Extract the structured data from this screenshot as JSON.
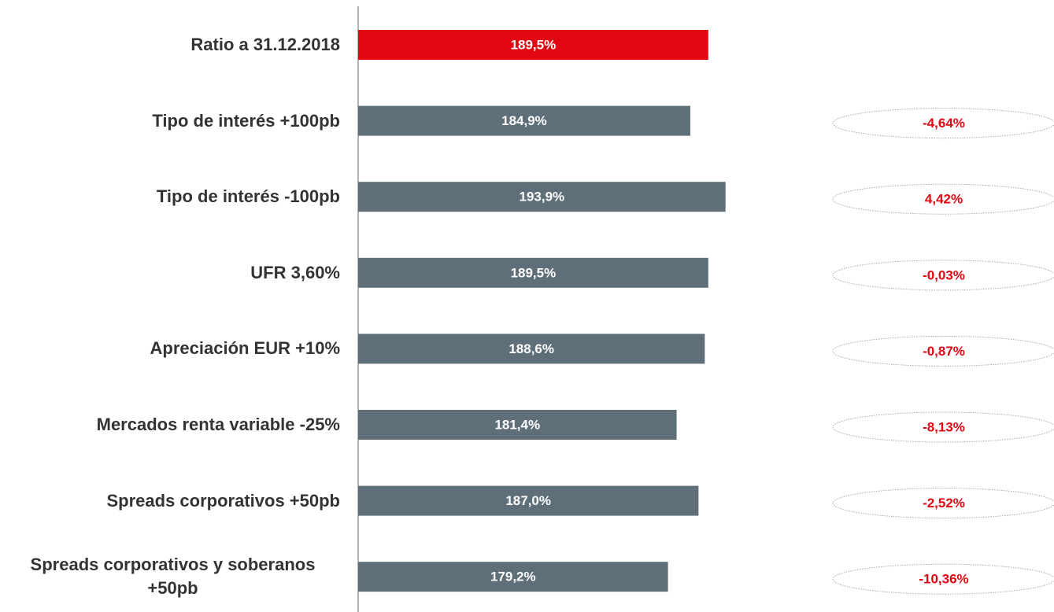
{
  "chart_data": {
    "type": "barh",
    "categories": [
      "Ratio a 31.12.2018",
      "Tipo de interés +100pb",
      "Tipo de interés -100pb",
      "UFR 3,60%",
      "Apreciación EUR +10%",
      "Mercados renta variable -25%",
      "Spreads corporativos +50pb",
      "Spreads corporativos y soberanos +50pb"
    ],
    "values": [
      189.5,
      184.9,
      193.9,
      189.5,
      188.6,
      181.4,
      187.0,
      179.2
    ],
    "value_labels": [
      "189,5%",
      "184,9%",
      "193,9%",
      "189,5%",
      "188,6%",
      "181,4%",
      "187,0%",
      "179,2%"
    ],
    "colors": [
      "#e30613",
      "#5f6f7a",
      "#5f6f7a",
      "#5f6f7a",
      "#5f6f7a",
      "#5f6f7a",
      "#5f6f7a",
      "#5f6f7a"
    ],
    "xlim": [
      100,
      200
    ],
    "changes": {
      "values": [
        null,
        -4.64,
        4.42,
        -0.03,
        -0.87,
        -8.13,
        -2.52,
        -10.36
      ],
      "value_labels": [
        null,
        "-4,64%",
        "4,42%",
        "-0,03%",
        "-0,87%",
        "-8,13%",
        "-2,52%",
        "-10,36%"
      ],
      "color": "#e30613"
    }
  }
}
